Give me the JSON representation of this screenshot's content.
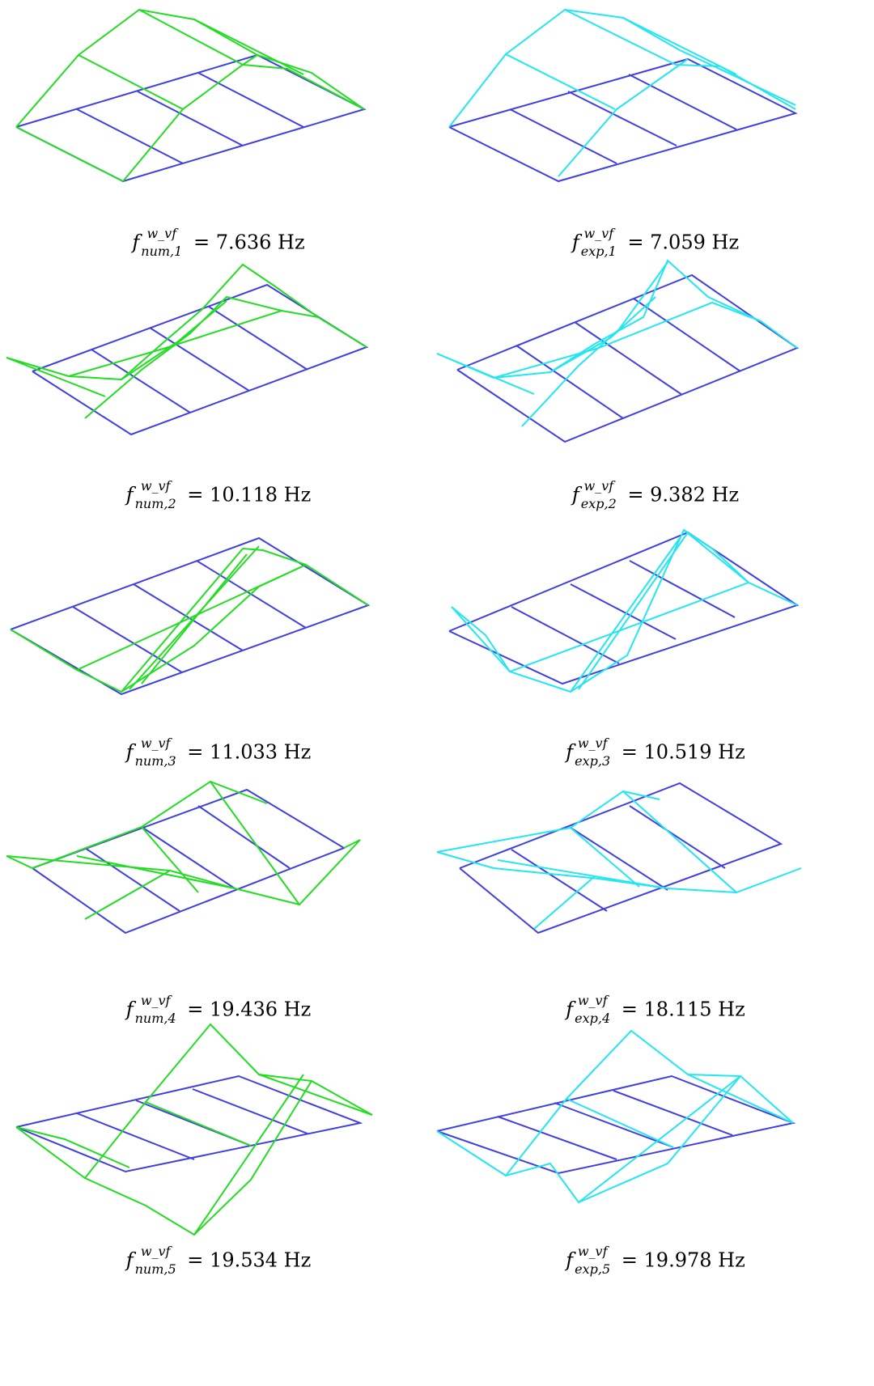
{
  "colors": {
    "base": "#4040e0",
    "num": "#22dd22",
    "exp": "#22e6f0"
  },
  "panels": [
    {
      "id": "num-1",
      "kind": "num",
      "sup": "w_vf",
      "sub": "num,1",
      "value": "7.636",
      "unit": "Hz"
    },
    {
      "id": "exp-1",
      "kind": "exp",
      "sup": "w_vf",
      "sub": "exp,1",
      "value": "7.059",
      "unit": "Hz"
    },
    {
      "id": "num-2",
      "kind": "num",
      "sup": "w_vf",
      "sub": "num,2",
      "value": "10.118",
      "unit": "Hz"
    },
    {
      "id": "exp-2",
      "kind": "exp",
      "sup": "w_vf",
      "sub": "exp,2",
      "value": "9.382",
      "unit": "Hz"
    },
    {
      "id": "num-3",
      "kind": "num",
      "sup": "w_vf",
      "sub": "num,3",
      "value": "11.033",
      "unit": "Hz"
    },
    {
      "id": "exp-3",
      "kind": "exp",
      "sup": "w_vf",
      "sub": "exp,3",
      "value": "10.519",
      "unit": "Hz"
    },
    {
      "id": "num-4",
      "kind": "num",
      "sup": "w_vf",
      "sub": "num,4",
      "value": "19.436",
      "unit": "Hz"
    },
    {
      "id": "exp-4",
      "kind": "exp",
      "sup": "w_vf",
      "sub": "exp,4",
      "value": "18.115",
      "unit": "Hz"
    },
    {
      "id": "num-5",
      "kind": "num",
      "sup": "w_vf",
      "sub": "num,5",
      "value": "19.534",
      "unit": "Hz"
    },
    {
      "id": "exp-5",
      "kind": "exp",
      "sup": "w_vf",
      "sub": "exp,5",
      "value": "19.978",
      "unit": "Hz"
    }
  ]
}
